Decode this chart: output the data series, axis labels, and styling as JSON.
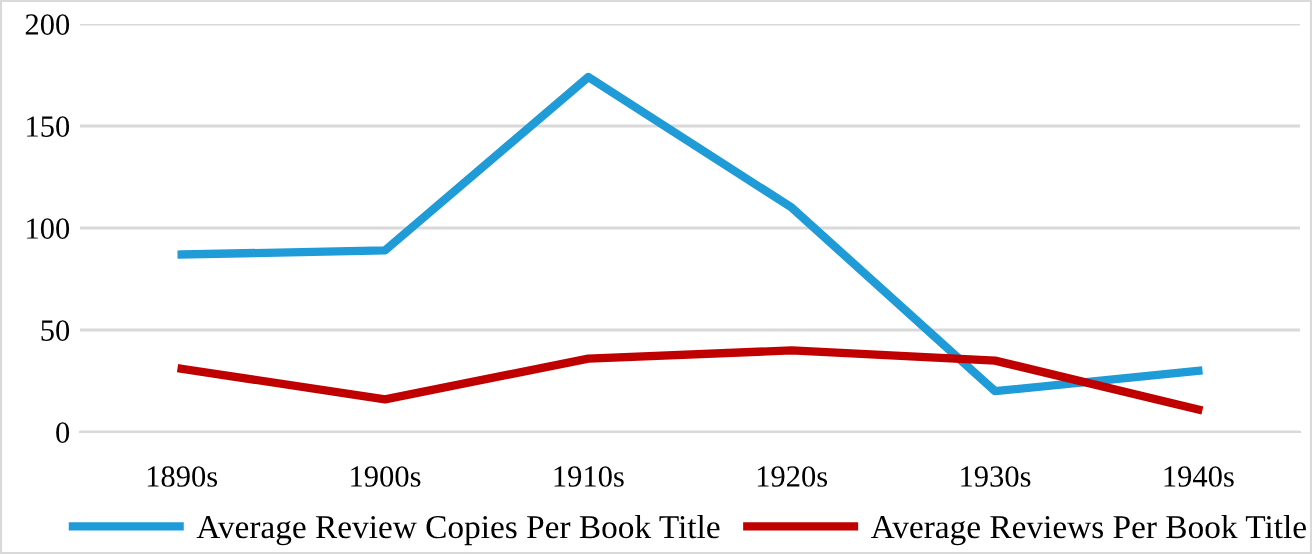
{
  "chart_data": {
    "type": "line",
    "categories": [
      "1890s",
      "1900s",
      "1910s",
      "1920s",
      "1930s",
      "1940s"
    ],
    "series": [
      {
        "name": "Average Review Copies Per Book Title",
        "color": "#1f9bd7",
        "values": [
          87,
          89,
          174,
          110,
          20,
          30
        ]
      },
      {
        "name": "Average Reviews Per Book Title",
        "color": "#c00000",
        "values": [
          31,
          16,
          36,
          40,
          35,
          11
        ]
      }
    ],
    "ylim": [
      0,
      200
    ],
    "yticks": [
      0,
      50,
      100,
      150,
      200
    ],
    "grid": "y",
    "legend": "bottom",
    "marker": "none",
    "line_style": "solid"
  }
}
